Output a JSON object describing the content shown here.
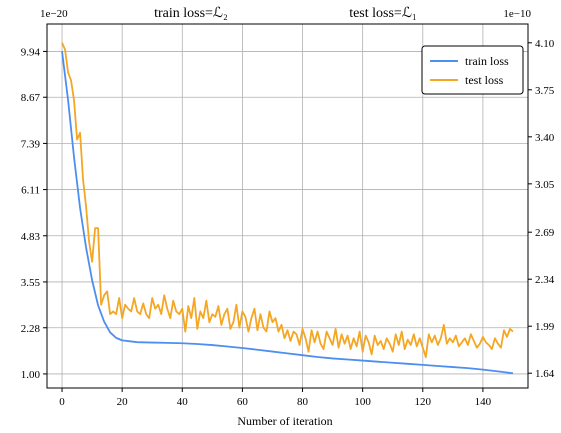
{
  "chart_data": {
    "type": "line",
    "titles": {
      "left": "train loss=ℒ₂",
      "right": "test loss=ℒ₁"
    },
    "xlabel": "Number of iteration",
    "xlim": [
      -5,
      155
    ],
    "x_ticks": [
      0,
      20,
      40,
      60,
      80,
      100,
      120,
      140
    ],
    "left_axis": {
      "offset_label": "1e−20",
      "ylim": [
        0.61,
        10.7
      ],
      "ticks": [
        1.0,
        2.28,
        3.55,
        4.83,
        6.11,
        7.39,
        8.67,
        9.94
      ],
      "tick_labels": [
        "1.00",
        "2.28",
        "3.55",
        "4.83",
        "6.11",
        "7.39",
        "8.67",
        "9.94"
      ]
    },
    "right_axis": {
      "offset_label": "1e−10",
      "ylim": [
        1.53,
        4.24
      ],
      "ticks": [
        1.64,
        1.99,
        2.34,
        2.69,
        3.05,
        3.4,
        3.75,
        4.1
      ],
      "tick_labels": [
        "1.64",
        "1.99",
        "2.34",
        "2.69",
        "3.05",
        "3.40",
        "3.75",
        "4.10"
      ]
    },
    "grid": true,
    "legend": {
      "position": "top-right",
      "entries": [
        "train loss",
        "test loss"
      ]
    },
    "series": [
      {
        "name": "train loss",
        "axis": "left",
        "color": "#4c8ff0",
        "x": [
          0,
          2,
          4,
          6,
          8,
          10,
          12,
          14,
          16,
          18,
          20,
          25,
          30,
          35,
          40,
          45,
          50,
          55,
          60,
          65,
          70,
          75,
          80,
          85,
          90,
          95,
          100,
          105,
          110,
          115,
          120,
          125,
          130,
          135,
          140,
          145,
          150
        ],
        "values": [
          9.94,
          8.6,
          7.0,
          5.6,
          4.5,
          3.6,
          2.9,
          2.45,
          2.15,
          2.0,
          1.93,
          1.88,
          1.87,
          1.86,
          1.85,
          1.83,
          1.8,
          1.76,
          1.72,
          1.67,
          1.62,
          1.57,
          1.52,
          1.47,
          1.43,
          1.4,
          1.37,
          1.34,
          1.31,
          1.28,
          1.25,
          1.22,
          1.19,
          1.16,
          1.12,
          1.07,
          1.02
        ]
      },
      {
        "name": "test loss",
        "axis": "right",
        "color": "#f5a623",
        "x": [
          0,
          1,
          2,
          3,
          4,
          5,
          6,
          7,
          8,
          9,
          10,
          11,
          12,
          13,
          14,
          15,
          16,
          17,
          18,
          19,
          20,
          21,
          22,
          23,
          24,
          25,
          26,
          27,
          28,
          29,
          30,
          31,
          32,
          33,
          34,
          35,
          36,
          37,
          38,
          39,
          40,
          41,
          42,
          43,
          44,
          45,
          46,
          47,
          48,
          49,
          50,
          51,
          52,
          53,
          54,
          55,
          56,
          57,
          58,
          59,
          60,
          61,
          62,
          63,
          64,
          65,
          66,
          67,
          68,
          69,
          70,
          71,
          72,
          73,
          74,
          75,
          76,
          77,
          78,
          79,
          80,
          81,
          82,
          83,
          84,
          85,
          86,
          87,
          88,
          89,
          90,
          91,
          92,
          93,
          94,
          95,
          96,
          97,
          98,
          99,
          100,
          101,
          102,
          103,
          104,
          105,
          106,
          107,
          108,
          109,
          110,
          111,
          112,
          113,
          114,
          115,
          116,
          117,
          118,
          119,
          120,
          121,
          122,
          123,
          124,
          125,
          126,
          127,
          128,
          129,
          130,
          131,
          132,
          133,
          134,
          135,
          136,
          137,
          138,
          139,
          140,
          141,
          142,
          143,
          144,
          145,
          146,
          147,
          148,
          149,
          150
        ],
        "values": [
          4.1,
          4.05,
          3.88,
          3.82,
          3.67,
          3.38,
          3.43,
          3.08,
          2.88,
          2.62,
          2.47,
          2.72,
          2.72,
          2.15,
          2.22,
          2.25,
          2.08,
          2.1,
          2.08,
          2.2,
          2.05,
          2.15,
          2.12,
          2.1,
          2.2,
          2.1,
          2.08,
          2.16,
          2.08,
          2.05,
          2.2,
          2.12,
          2.15,
          2.08,
          2.22,
          2.12,
          2.05,
          2.18,
          2.1,
          2.08,
          2.12,
          1.95,
          2.14,
          2.05,
          2.2,
          1.97,
          2.1,
          2.05,
          2.18,
          2.02,
          2.08,
          2.06,
          2.14,
          2.0,
          2.08,
          2.12,
          1.97,
          2.02,
          2.15,
          1.98,
          2.1,
          2.06,
          1.95,
          2.05,
          2.12,
          1.96,
          2.08,
          1.98,
          1.95,
          2.1,
          2.02,
          2.05,
          1.95,
          2.0,
          1.9,
          1.96,
          1.88,
          1.95,
          1.93,
          1.85,
          1.97,
          1.9,
          1.8,
          1.96,
          1.87,
          1.95,
          1.86,
          1.82,
          1.95,
          1.9,
          1.85,
          1.97,
          1.83,
          1.93,
          1.86,
          1.92,
          1.82,
          1.9,
          1.84,
          1.95,
          1.8,
          1.92,
          1.87,
          1.78,
          1.92,
          1.85,
          1.88,
          1.82,
          1.9,
          1.86,
          1.8,
          1.93,
          1.85,
          1.95,
          1.82,
          1.89,
          1.85,
          1.93,
          1.84,
          1.9,
          1.83,
          1.76,
          1.93,
          1.87,
          1.92,
          1.85,
          1.9,
          2.0,
          1.86,
          1.9,
          1.87,
          1.92,
          1.84,
          1.87,
          1.9,
          1.85,
          1.93,
          1.88,
          1.83,
          1.86,
          1.91,
          1.87,
          1.85,
          1.82,
          1.9,
          1.86,
          1.83,
          1.96,
          1.91,
          1.97,
          1.95
        ]
      }
    ]
  }
}
